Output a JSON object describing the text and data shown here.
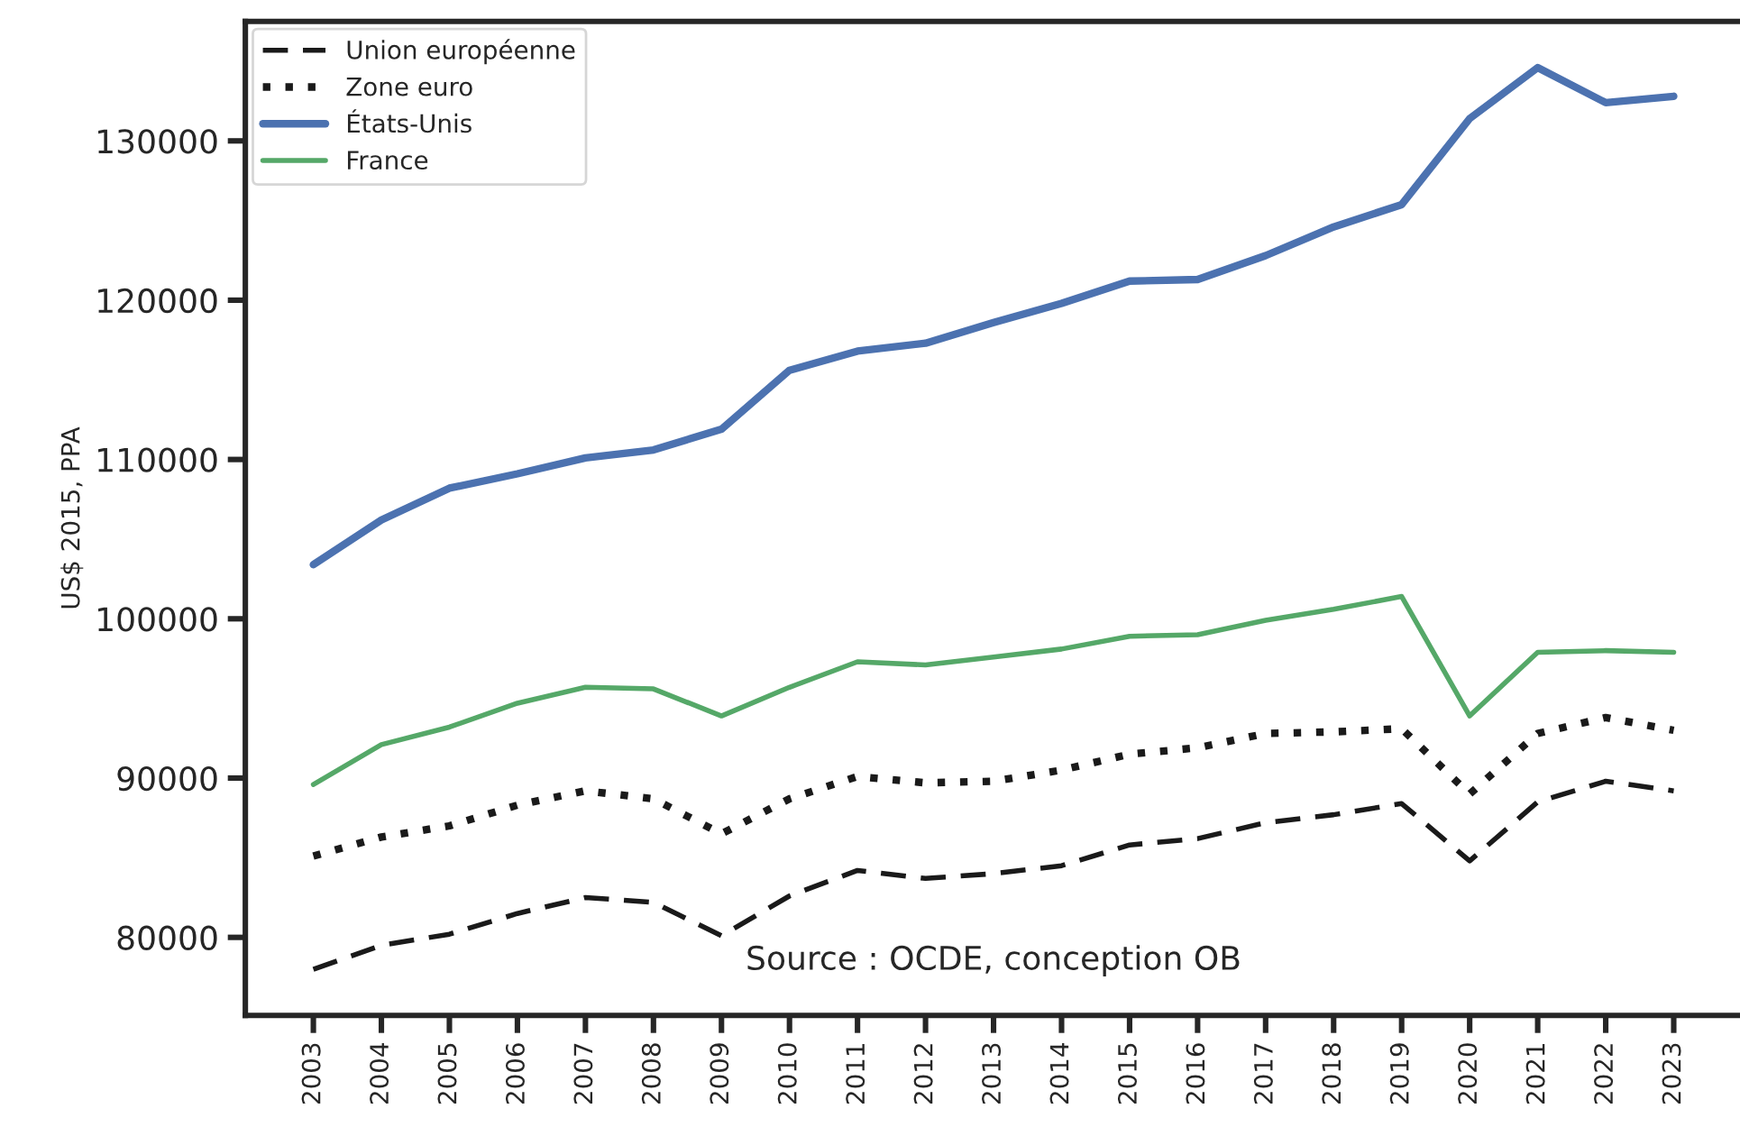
{
  "chart_data": {
    "type": "line",
    "ylabel": "US$ 2015, PPA",
    "annotations": [
      "Source : OCDE, conception OB"
    ],
    "categories": [
      "2003",
      "2004",
      "2005",
      "2006",
      "2007",
      "2008",
      "2009",
      "2010",
      "2011",
      "2012",
      "2013",
      "2014",
      "2015",
      "2016",
      "2017",
      "2018",
      "2019",
      "2020",
      "2021",
      "2022",
      "2023"
    ],
    "series": [
      {
        "name": "Union européenne",
        "color": "#1a1a1a",
        "line_style": "dashed",
        "values": [
          78000,
          79500,
          80200,
          81500,
          82500,
          82200,
          80100,
          82600,
          84200,
          83700,
          84000,
          84500,
          85800,
          86200,
          87200,
          87700,
          88400,
          84800,
          88500,
          89800,
          89200
        ]
      },
      {
        "name": "Zone euro",
        "color": "#1a1a1a",
        "line_style": "dotted",
        "values": [
          85100,
          86300,
          87000,
          88300,
          89200,
          88700,
          86500,
          88700,
          90100,
          89700,
          89800,
          90500,
          91500,
          91900,
          92800,
          92900,
          93100,
          89000,
          92800,
          93800,
          93000
        ]
      },
      {
        "name": "États-Unis",
        "color": "#4c72b0",
        "line_style": "solid",
        "values": [
          103400,
          106200,
          108200,
          109100,
          110100,
          110600,
          111900,
          115600,
          116800,
          117300,
          118600,
          119800,
          121200,
          121300,
          122800,
          124600,
          126000,
          131400,
          134600,
          132400,
          132800
        ]
      },
      {
        "name": "France",
        "color": "#55a868",
        "line_style": "solid",
        "values": [
          89600,
          92100,
          93200,
          94700,
          95700,
          95600,
          93900,
          95700,
          97300,
          97100,
          97600,
          98100,
          98900,
          99000,
          99900,
          100600,
          101400,
          93900,
          97900,
          98000,
          97900
        ]
      }
    ],
    "ylim": [
      75100,
      137500
    ],
    "yticks": [
      80000,
      90000,
      100000,
      110000,
      120000,
      130000
    ],
    "legend": "top left",
    "grid": false
  }
}
